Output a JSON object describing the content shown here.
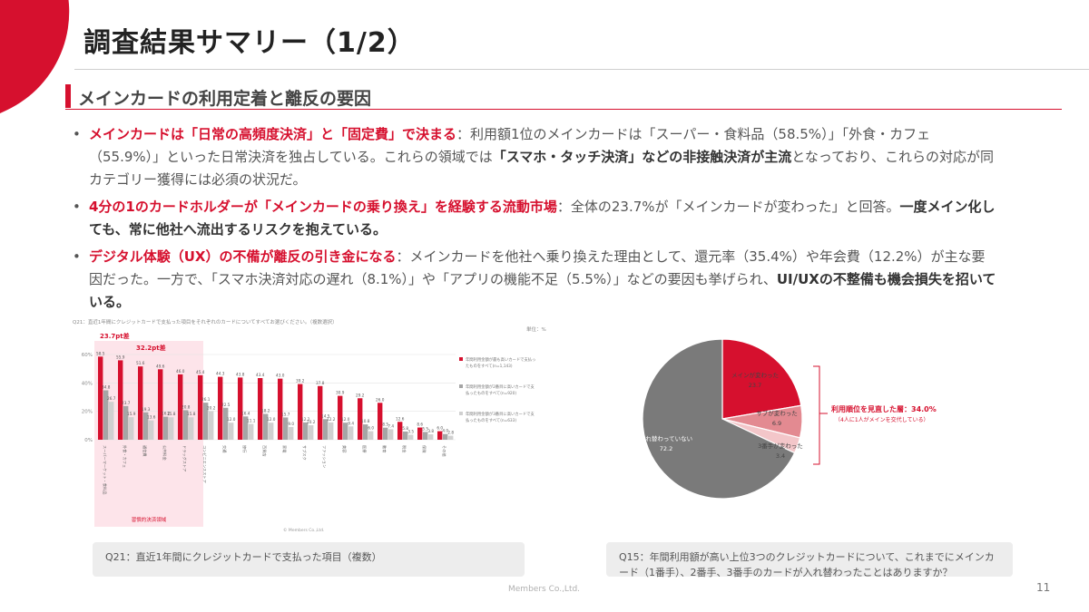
{
  "header": {
    "title": "調査結果サマリー（1/2）"
  },
  "section": {
    "title": "メインカードの利用定着と離反の要因"
  },
  "bullets": [
    {
      "lead": "メインカードは「日常の高頻度決済」と「固定費」で決まる",
      "body1": "：利用額1位のメインカードは「スーパー・食料品（58.5%）」「外食・カフェ（55.9%）」といった日常決済を独占している。これらの領域では",
      "strong1": "「スマホ・タッチ決済」などの非接触決済が主流",
      "body2": "となっており、これらの対応が同カテゴリー獲得には必須の状況だ。"
    },
    {
      "lead": "4分の1のカードホルダーが「メインカードの乗り換え」を経験する流動市場",
      "body1": "：全体の23.7%が「メインカードが変わった」と回答。",
      "strong1": "一度メイン化しても、常に他社へ流出するリスクを抱えている。"
    },
    {
      "lead": "デジタル体験（UX）の不備が離反の引き金になる",
      "body1": "：メインカードを他社へ乗り換えた理由として、還元率（35.4%）や年会費（12.2%）が主な要因だった。一方で、「スマホ決済対応の遅れ（8.1%）」や「アプリの機能不足（5.5%）」などの要因も挙げられ、",
      "strong1": "UI/UXの不整備も機会損失を招いている。"
    }
  ],
  "chart_data": [
    {
      "type": "bar",
      "title": "Q21：直近1年間にクレジットカードで支払った項目をそれぞれのカードについてすべてお選びください。（複数選択）",
      "unit": "単位：%",
      "ylim": [
        0,
        60
      ],
      "yticks": [
        "0%",
        "20%",
        "40%",
        "60%"
      ],
      "categories": [
        "スーパーマーケット・食料品",
        "外食・カフェ",
        "通信費",
        "公共料金",
        "ドラッグストア",
        "コンビニエンスストア",
        "交通",
        "旅行",
        "百貨店",
        "家電",
        "サブスク",
        "ファッション",
        "美容",
        "医療",
        "教育",
        "税金",
        "保険",
        "その他"
      ],
      "series": [
        {
          "name": "年間利用金額が最も高いカードで支払ったものをすべて(n=1,143)",
          "color": "#d6102e",
          "values": [
            58.5,
            55.9,
            51.6,
            49.6,
            46.0,
            45.4,
            44.3,
            43.8,
            43.4,
            43.0,
            39.2,
            37.8,
            30.9,
            29.2,
            26.0,
            12.6,
            8.6,
            6.0
          ]
        },
        {
          "name": "年間利用金額が2番目に高いカードで支払ったものをすべて(n=920)",
          "color": "#a5a5a5",
          "values": [
            34.8,
            23.7,
            19.3,
            16.2,
            20.8,
            26.1,
            22.5,
            16.4,
            18.2,
            15.7,
            12.2,
            14.5,
            12.0,
            10.8,
            8.5,
            5.8,
            5.5,
            4.0
          ]
        },
        {
          "name": "年間利用金額が3番目に高いカードで支払ったものをすべて(n=633)",
          "color": "#d0d0d0",
          "values": [
            26.7,
            15.9,
            13.6,
            15.8,
            15.8,
            20.2,
            12.0,
            11.1,
            12.0,
            9.0,
            10.2,
            12.2,
            9.4,
            6.0,
            7.4,
            3.5,
            3.8,
            2.8
          ]
        }
      ],
      "annotations": [
        "23.7pt差",
        "32.2pt差",
        "習慣的決済領域"
      ],
      "source": "© Members Co.,Ltd."
    },
    {
      "type": "pie",
      "slices": [
        {
          "label": "メインが変わった",
          "value": 23.7,
          "color": "#d6102e"
        },
        {
          "label": "サブが変わった",
          "value": 6.9,
          "color": "#e38a91"
        },
        {
          "label": "3番手が変わった",
          "value": 3.4,
          "color": "#f3c6c9"
        },
        {
          "label": "入れ替わっていない",
          "value": 72.2,
          "color": "#7a7a7a"
        }
      ],
      "callout": {
        "title": "利用順位を見直した層：34.0%",
        "sub": "（4人に1人がメインを交代している）"
      }
    }
  ],
  "captions": {
    "q21": "Q21：直近1年間にクレジットカードで支払った項目（複数）",
    "q15": "Q15：年間利用額が高い上位3つのクレジットカードについて、これまでにメインカード（1番手）、2番手、3番手のカードが入れ替わったことはありますか？"
  },
  "footer": {
    "company": "Members Co.,Ltd.",
    "page": "11"
  },
  "colors": {
    "accent": "#d6102e"
  }
}
